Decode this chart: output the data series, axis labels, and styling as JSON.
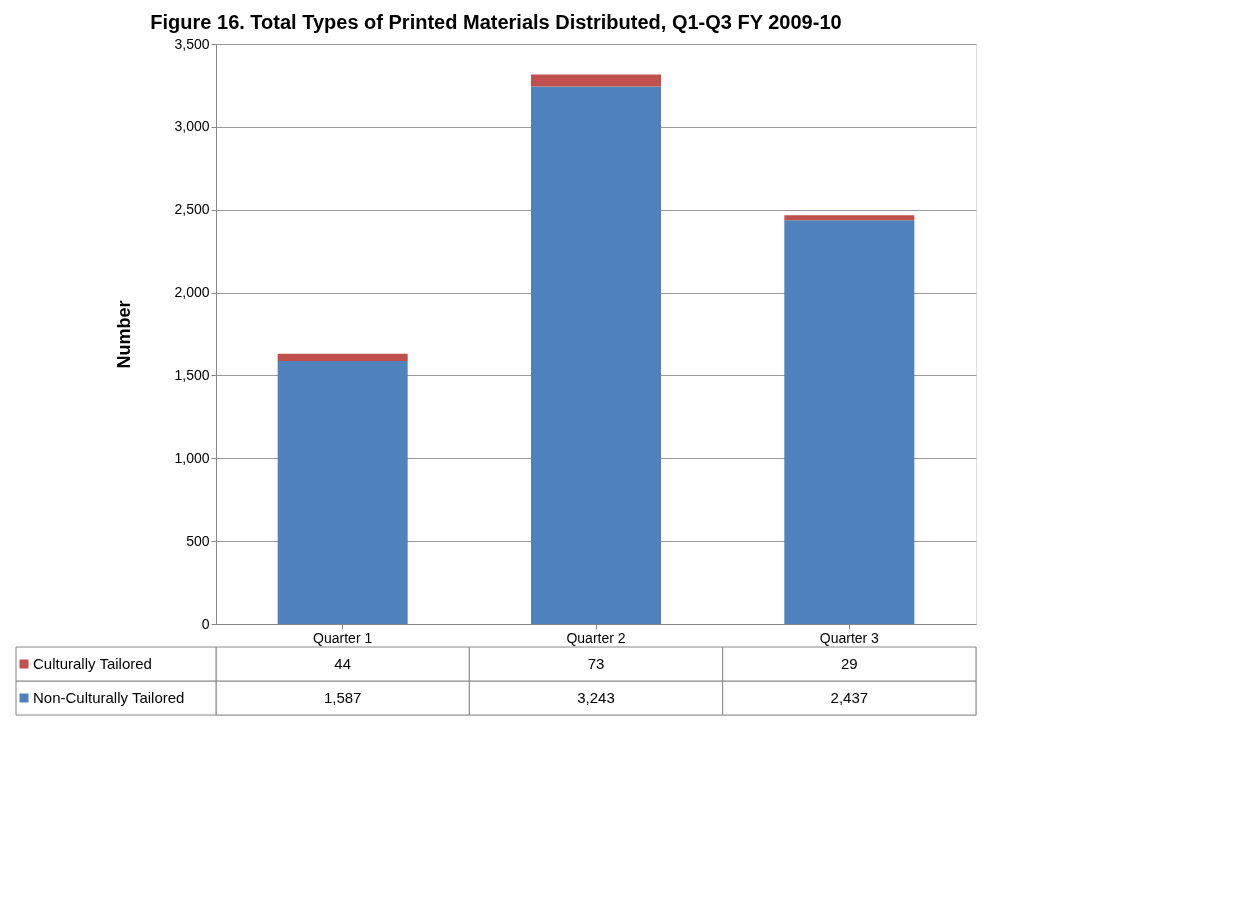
{
  "chart_data": {
    "type": "bar",
    "title": "Figure 16. Total Types of Printed Materials Distributed, Q1-Q3 FY 2009-10",
    "ylabel": "Number",
    "categories": [
      "Quarter 1",
      "Quarter 2",
      "Quarter 3"
    ],
    "stacked": true,
    "series": [
      {
        "name": "Non-Culturally Tailored",
        "color": "#4f81bd",
        "values": [
          1587,
          3243,
          2437
        ],
        "value_labels": [
          "1,587",
          "3,243",
          "2,437"
        ]
      },
      {
        "name": "Culturally Tailored",
        "color": "#c0504d",
        "values": [
          44,
          73,
          29
        ],
        "value_labels": [
          "44",
          "73",
          "29"
        ]
      }
    ],
    "ylim": [
      0,
      3500
    ],
    "yticks": [
      0,
      {
        "value": 500,
        "label": "500"
      },
      {
        "value": 1000,
        "label": "1,000"
      },
      {
        "value": 1500,
        "label": "1,500"
      },
      {
        "value": 2000,
        "label": "2,000"
      },
      {
        "value": 2500,
        "label": "2,500"
      },
      {
        "value": 3000,
        "label": "3,000"
      },
      {
        "value": 3500,
        "label": "3,500"
      }
    ],
    "grid": "y",
    "legend": "bottom"
  }
}
